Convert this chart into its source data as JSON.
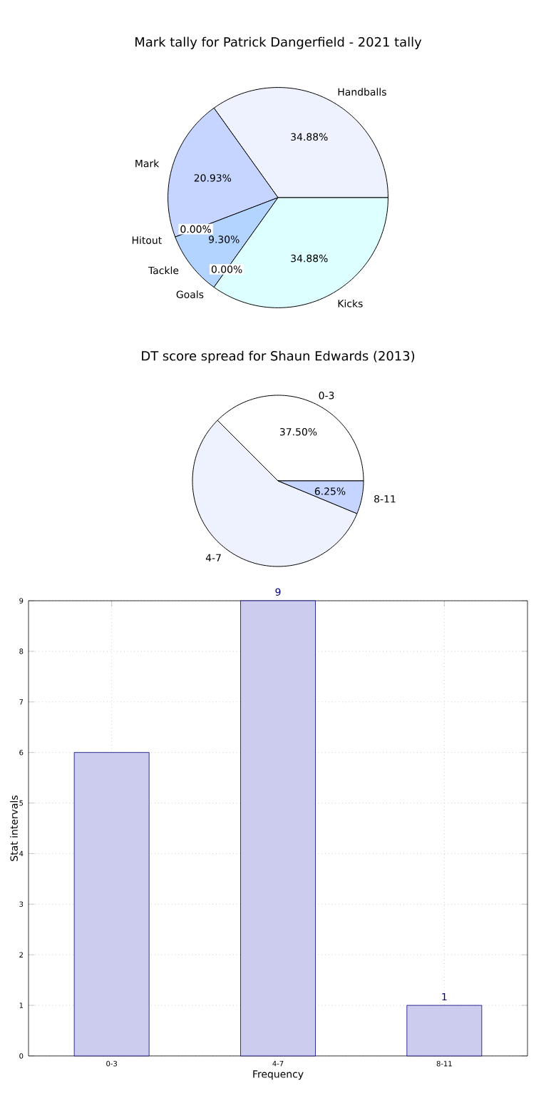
{
  "chart_data": [
    {
      "type": "pie",
      "title": "Mark tally for Patrick Dangerfield - 2021 tally",
      "categories": [
        "Handballs",
        "Mark",
        "Hitout",
        "Tackle",
        "Goals",
        "Kicks"
      ],
      "values": [
        34.88,
        20.93,
        0.0,
        9.3,
        0.0,
        34.88
      ],
      "colors": [
        "#eef2ff",
        "#c5d5ff",
        "#ffffff",
        "#b3d4ff",
        "#ffffff",
        "#ddffff"
      ],
      "value_labels": [
        "34.88%",
        "20.93%",
        "0.00%",
        "9.30%",
        "0.00%",
        "34.88%"
      ]
    },
    {
      "type": "pie",
      "title": "DT score spread for Shaun Edwards (2013)",
      "categories": [
        "0-3",
        "4-7",
        "8-11"
      ],
      "values": [
        37.5,
        56.25,
        6.25
      ],
      "colors": [
        "#ffffff",
        "#eef2ff",
        "#c5d5ff"
      ],
      "value_labels": [
        "37.50%",
        null,
        "6.25%"
      ]
    },
    {
      "type": "bar",
      "categories": [
        "0-3",
        "4-7",
        "8-11"
      ],
      "values": [
        6,
        9,
        1
      ],
      "color": "#ccccee",
      "xlabel": "Frequency",
      "ylabel": "Stat intervals",
      "ylim": [
        0,
        9
      ],
      "yticks": [
        0,
        1,
        2,
        3,
        4,
        5,
        6,
        7,
        8,
        9
      ],
      "grid": true,
      "value_labels": [
        null,
        "9",
        "1"
      ]
    }
  ]
}
